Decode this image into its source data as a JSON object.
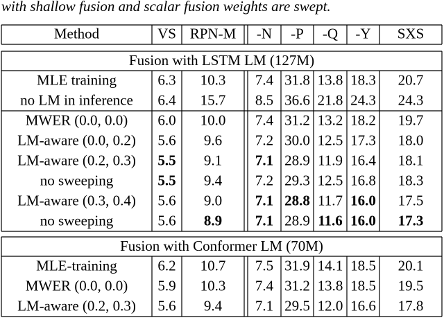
{
  "caption": "with shallow fusion and scalar fusion weights are swept.",
  "table": {
    "header": [
      "Method",
      "VS",
      "RPN-M",
      "-N",
      "-P",
      "-Q",
      "-Y",
      "SXS"
    ],
    "sections": [
      {
        "title": "Fusion with LSTM LM (127M)",
        "groups": [
          [
            {
              "cells": [
                "MLE training",
                "6.3",
                "10.3",
                "7.4",
                "31.8",
                "13.8",
                "18.3",
                "20.7"
              ],
              "bold": []
            },
            {
              "cells": [
                "no LM in inference",
                "6.4",
                "15.7",
                "8.5",
                "36.6",
                "21.8",
                "24.3",
                "24.3"
              ],
              "bold": []
            }
          ],
          [
            {
              "cells": [
                "MWER (0.0, 0.0)",
                "6.0",
                "10.0",
                "7.4",
                "31.2",
                "13.2",
                "18.2",
                "19.7"
              ],
              "bold": []
            },
            {
              "cells": [
                "LM-aware (0.0, 0.2)",
                "5.6",
                "9.6",
                "7.2",
                "30.0",
                "12.5",
                "17.3",
                "18.0"
              ],
              "bold": []
            },
            {
              "cells": [
                "LM-aware (0.2, 0.3)",
                "5.5",
                "9.1",
                "7.1",
                "28.9",
                "11.9",
                "16.4",
                "18.1"
              ],
              "bold": [
                1,
                3
              ]
            },
            {
              "cells": [
                "no sweeping",
                "5.5",
                "9.4",
                "7.2",
                "29.3",
                "12.5",
                "16.8",
                "18.3"
              ],
              "bold": [
                1
              ]
            },
            {
              "cells": [
                "LM-aware (0.3, 0.4)",
                "5.6",
                "9.0",
                "7.1",
                "28.8",
                "11.7",
                "16.0",
                "17.5"
              ],
              "bold": [
                3,
                4,
                6
              ]
            },
            {
              "cells": [
                "no sweeping",
                "5.6",
                "8.9",
                "7.1",
                "28.9",
                "11.6",
                "16.0",
                "17.3"
              ],
              "bold": [
                2,
                3,
                5,
                6,
                7
              ]
            }
          ]
        ]
      },
      {
        "title": "Fusion with Conformer LM (70M)",
        "groups": [
          [
            {
              "cells": [
                "MLE-training",
                "6.2",
                "10.7",
                "7.5",
                "31.9",
                "14.1",
                "18.5",
                "20.1"
              ],
              "bold": []
            },
            {
              "cells": [
                "MWER (0.0, 0.0)",
                "5.9",
                "10.3",
                "7.4",
                "31.2",
                "13.8",
                "18.5",
                "19.5"
              ],
              "bold": []
            },
            {
              "cells": [
                "LM-aware (0.2, 0.3)",
                "5.6",
                "9.4",
                "7.1",
                "29.5",
                "12.0",
                "16.6",
                "17.8"
              ],
              "bold": []
            }
          ]
        ]
      }
    ]
  }
}
